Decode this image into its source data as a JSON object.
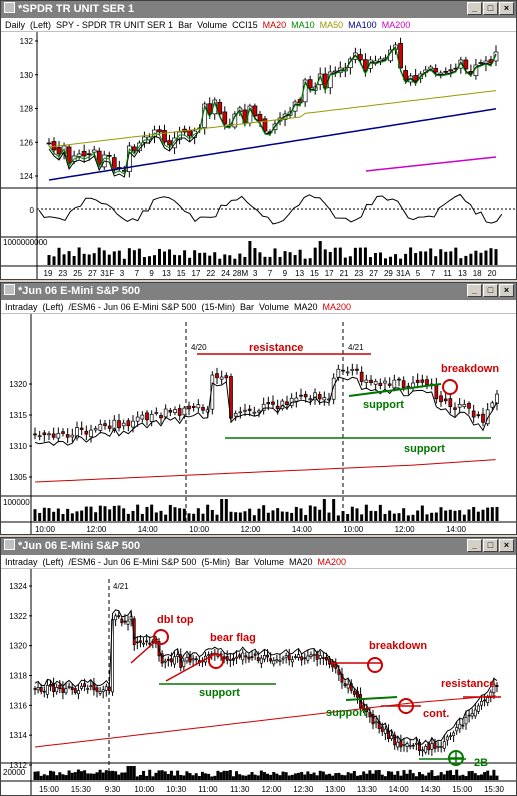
{
  "windows": [
    {
      "title": "*SPDR TR UNIT SER 1",
      "info": {
        "period": "Daily",
        "axis": "(Left)",
        "symbol": "SPY - SPDR TR UNIT SER 1",
        "type": "Bar",
        "volume": "Volume",
        "osc": "CCI15",
        "ma20": "MA20",
        "ma10": "MA10",
        "ma50": "MA50",
        "ma100": "MA100",
        "ma200": "MA200"
      },
      "yticks": [
        "132",
        "130",
        "128",
        "126",
        "124"
      ],
      "osc_ticks": [
        "0"
      ],
      "vol_tick": "1000000000",
      "xticks": [
        "19",
        "23",
        "25",
        "27",
        "31F",
        "3",
        "7",
        "9",
        "13",
        "15",
        "17",
        "22",
        "24",
        "28M",
        "3",
        "7",
        "9",
        "13",
        "15",
        "17",
        "21",
        "23",
        "27",
        "29",
        "31A",
        "5",
        "7",
        "11",
        "13",
        "18",
        "20"
      ]
    },
    {
      "title": "*Jun 06  E-Mini S&P 500",
      "info": {
        "period": "Intraday",
        "axis": "(Left)",
        "symbol": "/ESM6 - Jun 06  E-Mini S&P 500",
        "interval": "(15-Min)",
        "type": "Bar",
        "volume": "Volume",
        "ma20": "MA20",
        "ma200": "MA200"
      },
      "yticks": [
        "1320",
        "1315",
        "1310",
        "1305"
      ],
      "vol_tick": "100000",
      "xticks": [
        "10:00",
        "12:00",
        "14:00",
        "10:00",
        "12:00",
        "14:00",
        "10:00",
        "12:00",
        "14:00"
      ],
      "annotations": {
        "date1": "4/20",
        "date2": "4/21",
        "resistance": "resistance",
        "support1": "support",
        "support2": "support",
        "breakdown": "breakdown"
      }
    },
    {
      "title": "*Jun 06  E-Mini S&P 500",
      "info": {
        "period": "Intraday",
        "axis": "(Left)",
        "symbol": "/ESM6 - Jun 06  E-Mini S&P 500",
        "interval": "(5-Min)",
        "type": "Bar",
        "volume": "Volume",
        "ma20": "MA20",
        "ma200": "MA200"
      },
      "yticks": [
        "1324",
        "1322",
        "1320",
        "1318",
        "1316",
        "1314",
        "1312"
      ],
      "vol_tick": "20000",
      "xticks": [
        "15:00",
        "15:30",
        "9:30",
        "10:00",
        "10:30",
        "11:00",
        "11:30",
        "12:00",
        "12:30",
        "13:00",
        "13:30",
        "14:00",
        "14:30",
        "15:00",
        "15:30"
      ],
      "annotations": {
        "date": "4/21",
        "dbl_top": "dbl top",
        "bear_flag": "bear flag",
        "support1": "support",
        "breakdown": "breakdown",
        "support2": "support",
        "cont": "cont.",
        "resistance": "resistance",
        "twob": "2B"
      }
    }
  ],
  "colors": {
    "title_inactive": "#808080",
    "up": "#ffffff",
    "down": "#cc0000",
    "ma20": "#000000",
    "ma50": "#999900",
    "ma10": "#008800",
    "ma100": "#000088",
    "ma200": "#cc0000",
    "annot_red": "#cc0000",
    "annot_green": "#007700"
  }
}
